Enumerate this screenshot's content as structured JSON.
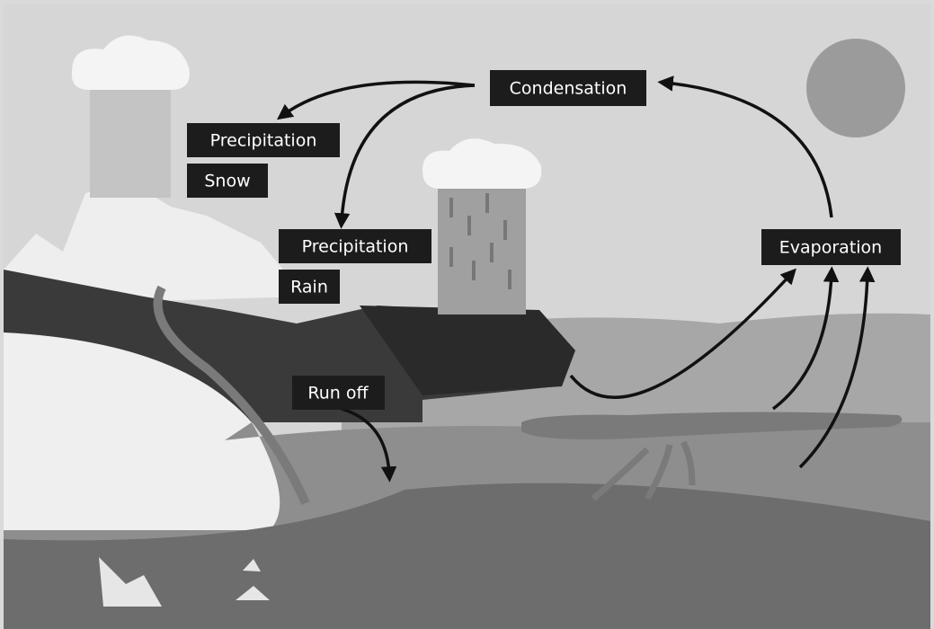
{
  "labels": [
    "Condensation",
    "Precipitation",
    "Snow",
    "Precipitation",
    "Rain",
    "Run off",
    "Evaporation"
  ]
}
